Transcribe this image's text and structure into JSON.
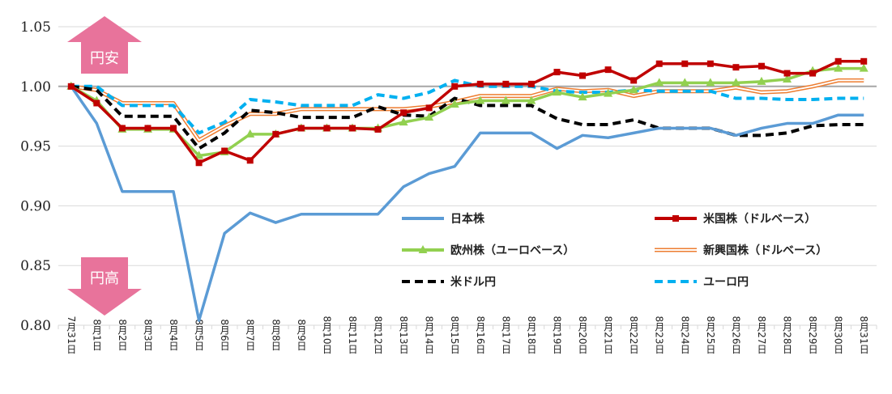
{
  "chart_data": {
    "type": "line",
    "title": "",
    "xlabel": "",
    "ylabel": "",
    "ylim": [
      0.8,
      1.05
    ],
    "yticks": [
      "0.80",
      "0.85",
      "0.90",
      "0.95",
      "1.00",
      "1.05"
    ],
    "grid": true,
    "legend_position": "bottom-right",
    "annotations": {
      "yen_weak": "円安",
      "yen_strong": "円高",
      "color": "#e8739b"
    },
    "categories": [
      "7月31日",
      "8月1日",
      "8月2日",
      "8月3日",
      "8月4日",
      "8月5日",
      "8月6日",
      "8月7日",
      "8月8日",
      "8月9日",
      "8月10日",
      "8月11日",
      "8月12日",
      "8月13日",
      "8月14日",
      "8月15日",
      "8月16日",
      "8月17日",
      "8月18日",
      "8月19日",
      "8月20日",
      "8月21日",
      "8月22日",
      "8月23日",
      "8月24日",
      "8月25日",
      "8月26日",
      "8月27日",
      "8月28日",
      "8月29日",
      "8月30日",
      "8月31日"
    ],
    "series": [
      {
        "name": "日本株",
        "color": "#5b9bd5",
        "style": "solid",
        "marker": "none",
        "values": [
          1.0,
          0.969,
          0.912,
          0.912,
          0.912,
          0.804,
          0.877,
          0.894,
          0.886,
          0.893,
          0.893,
          0.893,
          0.893,
          0.916,
          0.927,
          0.933,
          0.961,
          0.961,
          0.961,
          0.948,
          0.959,
          0.957,
          0.961,
          0.965,
          0.965,
          0.965,
          0.959,
          0.965,
          0.969,
          0.969,
          0.976,
          0.976
        ]
      },
      {
        "name": "米国株（ドルベース）",
        "color": "#c00000",
        "style": "solid",
        "marker": "square",
        "values": [
          1.0,
          0.986,
          0.965,
          0.965,
          0.965,
          0.936,
          0.946,
          0.938,
          0.96,
          0.965,
          0.965,
          0.965,
          0.964,
          0.978,
          0.982,
          1.0,
          1.002,
          1.002,
          1.002,
          1.012,
          1.009,
          1.014,
          1.005,
          1.019,
          1.019,
          1.019,
          1.016,
          1.017,
          1.011,
          1.011,
          1.021,
          1.021
        ]
      },
      {
        "name": "欧州株（ユーロベース）",
        "color": "#92d050",
        "style": "solid",
        "marker": "triangle",
        "values": [
          1.0,
          0.988,
          0.964,
          0.964,
          0.964,
          0.942,
          0.945,
          0.96,
          0.96,
          0.965,
          0.965,
          0.965,
          0.965,
          0.97,
          0.974,
          0.985,
          0.988,
          0.988,
          0.988,
          0.995,
          0.991,
          0.994,
          0.997,
          1.003,
          1.003,
          1.003,
          1.003,
          1.004,
          1.006,
          1.013,
          1.015,
          1.015
        ]
      },
      {
        "name": "新興国株（ドルベース）",
        "color": "#ed7d31",
        "style": "double",
        "marker": "none",
        "values": [
          1.0,
          0.997,
          0.986,
          0.986,
          0.986,
          0.955,
          0.967,
          0.977,
          0.977,
          0.981,
          0.981,
          0.981,
          0.981,
          0.981,
          0.983,
          0.987,
          0.992,
          0.992,
          0.992,
          0.998,
          0.996,
          0.997,
          0.992,
          0.996,
          0.996,
          0.996,
          0.999,
          0.995,
          0.996,
          1.0,
          1.005,
          1.005
        ]
      },
      {
        "name": "米ドル円",
        "color": "#000000",
        "style": "dashed",
        "marker": "none",
        "values": [
          1.0,
          0.997,
          0.975,
          0.975,
          0.975,
          0.948,
          0.961,
          0.98,
          0.978,
          0.974,
          0.974,
          0.974,
          0.983,
          0.976,
          0.975,
          0.99,
          0.984,
          0.984,
          0.984,
          0.973,
          0.968,
          0.968,
          0.972,
          0.965,
          0.965,
          0.965,
          0.959,
          0.959,
          0.961,
          0.967,
          0.968,
          0.968
        ]
      },
      {
        "name": "ユーロ円",
        "color": "#00b0f0",
        "style": "dashed",
        "marker": "none",
        "values": [
          1.0,
          1.0,
          0.984,
          0.984,
          0.984,
          0.961,
          0.97,
          0.989,
          0.987,
          0.984,
          0.984,
          0.984,
          0.993,
          0.99,
          0.995,
          1.005,
          1.0,
          1.0,
          1.0,
          0.996,
          0.995,
          0.995,
          0.997,
          0.996,
          0.996,
          0.996,
          0.99,
          0.99,
          0.989,
          0.989,
          0.99,
          0.99
        ]
      }
    ]
  }
}
